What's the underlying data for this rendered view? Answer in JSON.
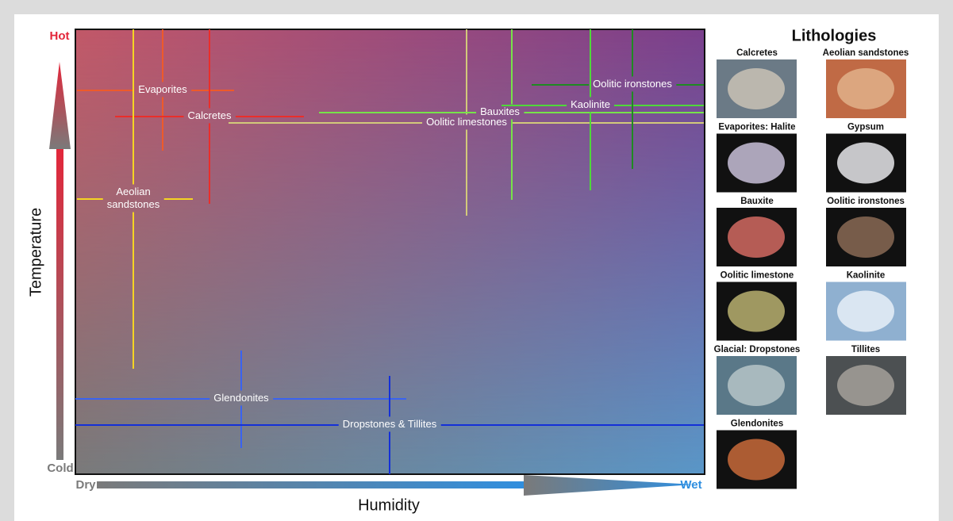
{
  "diagram": {
    "y_axis": {
      "title": "Temperature",
      "top": "Hot",
      "bottom": "Cold",
      "top_color": "#e3263a",
      "bottom_color": "#7a7a7a"
    },
    "x_axis": {
      "title": "Humidity",
      "left": "Dry",
      "right": "Wet",
      "left_color": "#7a7a7a",
      "right_color": "#2f8fe0"
    },
    "zones": [
      {
        "label": [
          "Evaporites"
        ],
        "color": "#ee5a2a"
      },
      {
        "label": [
          "Calcretes"
        ],
        "color": "#ea2e2a"
      },
      {
        "label": [
          "Aeolian",
          "sandstones"
        ],
        "color": "#f5d423"
      },
      {
        "label": [
          "Oolitic limestones"
        ],
        "color": "#d2c97a"
      },
      {
        "label": [
          "Bauxites"
        ],
        "color": "#77e24a"
      },
      {
        "label": [
          "Kaolinite"
        ],
        "color": "#4fd83a"
      },
      {
        "label": [
          "Oolitic ironstones"
        ],
        "color": "#1f8a22"
      },
      {
        "label": [
          "Glendonites"
        ],
        "color": "#3a63f0"
      },
      {
        "label": [
          "Dropstones & Tillites"
        ],
        "color": "#1430d8"
      }
    ],
    "lithologies": {
      "title": "Lithologies",
      "items": [
        "Calcretes",
        "Aeolian sandstones",
        "Evaporites: Halite",
        "Gypsum",
        "Bauxite",
        "Oolitic ironstones",
        "Oolitic limestone",
        "Kaolinite",
        "Glacial: Dropstones",
        "Tillites",
        "Glendonites"
      ]
    }
  }
}
